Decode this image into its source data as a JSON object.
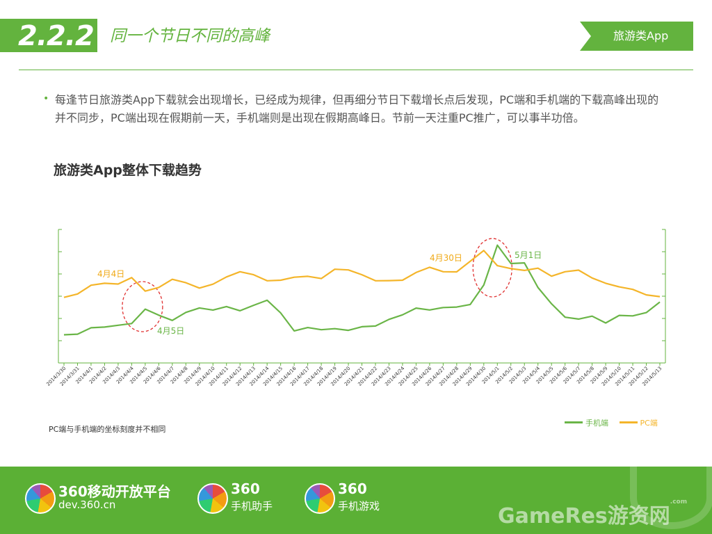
{
  "header": {
    "section_number": "2.2.2",
    "title": "同一个节日不同的高峰",
    "category_tag": "旅游类App"
  },
  "body": {
    "bullet": "每逢节日旅游类App下载就会出现增长，已经成为规律，但再细分节日下载增长点后发现，PC端和手机端的下载高峰出现的并不同步，PC端出现在假期前一天，手机端则是出现在假期高峰日。节前一天注重PC推广，可以事半功倍。"
  },
  "chart_data": {
    "type": "line",
    "title": "旅游类App整体下载趋势",
    "categories": [
      "2014/3/30",
      "2014/3/31",
      "2014/4/1",
      "2014/4/2",
      "2014/4/3",
      "2014/4/4",
      "2014/4/5",
      "2014/4/6",
      "2014/4/7",
      "2014/4/8",
      "2014/4/9",
      "2014/4/10",
      "2014/4/11",
      "2014/4/12",
      "2014/4/13",
      "2014/4/14",
      "2014/4/15",
      "2014/4/16",
      "2014/4/17",
      "2014/4/18",
      "2014/4/19",
      "2014/4/20",
      "2014/4/21",
      "2014/4/22",
      "2014/4/23",
      "2014/4/24",
      "2014/4/25",
      "2014/4/26",
      "2014/4/27",
      "2014/4/28",
      "2014/4/29",
      "2014/4/30",
      "2014/5/1",
      "2014/5/2",
      "2014/5/3",
      "2014/5/4",
      "2014/5/5",
      "2014/5/6",
      "2014/5/7",
      "2014/5/8",
      "2014/5/9",
      "2014/5/10",
      "2014/5/11",
      "2014/5/12",
      "2014/5/13"
    ],
    "series": [
      {
        "name": "手机端",
        "color": "#6ab547",
        "axis": "left",
        "values": [
          38.0,
          38.8,
          47.4,
          48.4,
          50.8,
          53.2,
          72.6,
          64.4,
          57.4,
          68.2,
          74.2,
          71.3,
          76.0,
          70.4,
          77.7,
          84.6,
          67.5,
          43.2,
          47.7,
          44.8,
          46.2,
          44.0,
          48.8,
          49.8,
          58.8,
          64.9,
          74.0,
          71.4,
          74.7,
          75.4,
          78.8,
          105.1,
          158.8,
          134.1,
          134.9,
          101.7,
          79.8,
          61.7,
          59.2,
          63.1,
          53.9,
          64.1,
          63.5,
          67.9,
          82.1
        ]
      },
      {
        "name": "PC端",
        "color": "#f4b52a",
        "axis": "right",
        "values": [
          44.2,
          46.5,
          52.4,
          53.7,
          53.2,
          57.5,
          48.4,
          50.9,
          56.4,
          54.1,
          50.5,
          53.1,
          58.0,
          61.5,
          59.5,
          55.4,
          55.8,
          57.8,
          58.4,
          56.9,
          63.2,
          62.7,
          59.5,
          55.4,
          55.5,
          55.8,
          61.0,
          64.5,
          61.5,
          61.4,
          68.6,
          75.8,
          65.6,
          63.6,
          62.4,
          63.9,
          58.5,
          61.5,
          62.6,
          57.3,
          53.7,
          51.3,
          49.6,
          45.9,
          44.7
        ]
      }
    ],
    "ylim_left": [
      0,
      180
    ],
    "ylim_right": [
      0,
      90
    ],
    "annotations": [
      {
        "text": "4月4日",
        "color": "#f0a916"
      },
      {
        "text": "4月5日",
        "color": "#6ab547"
      },
      {
        "text": "4月30日",
        "color": "#f0a916"
      },
      {
        "text": "5月1日",
        "color": "#6ab547"
      }
    ],
    "note": "PC端与手机端的坐标刻度并不相同",
    "legend_position": "bottom-right"
  },
  "footer": {
    "brands": [
      {
        "name": "360移动开放平台",
        "sub": "dev.360.cn"
      },
      {
        "name": "360",
        "sub": "手机助手"
      },
      {
        "name": "360",
        "sub": "手机游戏"
      }
    ],
    "watermark": "GameRes游资网",
    "watermark_com": ".com"
  }
}
